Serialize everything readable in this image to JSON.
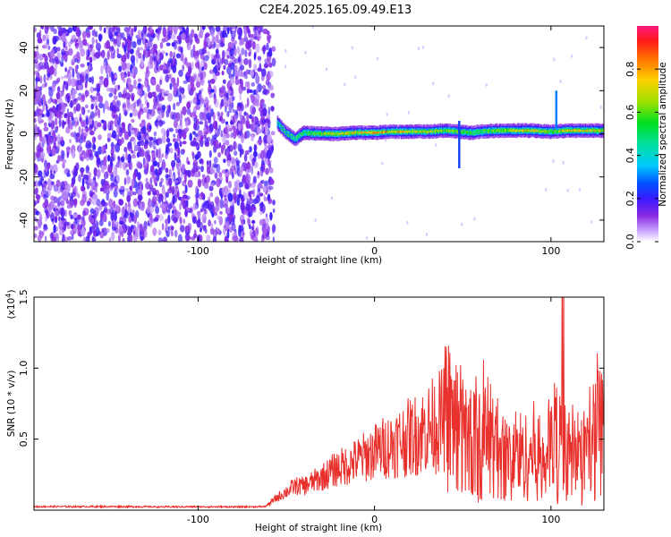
{
  "title": "C2E4.2025.165.09.49.E13",
  "colors": {
    "line": "#e8302c",
    "axis": "#000000",
    "spectro_noise": "#8a2be2",
    "spectro_signal": [
      "#1a1aff",
      "#00d4ff",
      "#00e640",
      "#ffd700",
      "#ff2020"
    ]
  },
  "chart_data": [
    {
      "type": "heatmap",
      "xlabel": "Height of straight line (km)",
      "ylabel": "Frequency (Hz)",
      "xlim": [
        -193,
        130
      ],
      "ylim": [
        -50,
        50
      ],
      "x_ticks": [
        -100,
        0,
        100
      ],
      "x_tick_labels": [
        "-100",
        "0",
        "100"
      ],
      "y_ticks": [
        -40,
        -20,
        0,
        20,
        40
      ],
      "y_tick_labels": [
        "-40",
        "-20",
        "0",
        "20",
        "40"
      ],
      "noise_region_end_km": -57,
      "signal_band": [
        {
          "x": -55,
          "f": 5.0,
          "amp": 0.35
        },
        {
          "x": -50,
          "f": 0.5,
          "amp": 0.4
        },
        {
          "x": -45,
          "f": -2.5,
          "amp": 0.45
        },
        {
          "x": -40,
          "f": 0.5,
          "amp": 0.55
        },
        {
          "x": -30,
          "f": 0.0,
          "amp": 0.7
        },
        {
          "x": -20,
          "f": 0.0,
          "amp": 0.8
        },
        {
          "x": -10,
          "f": 0.5,
          "amp": 0.85
        },
        {
          "x": 0,
          "f": 0.5,
          "amp": 0.9
        },
        {
          "x": 10,
          "f": 1.0,
          "amp": 0.9
        },
        {
          "x": 20,
          "f": 1.0,
          "amp": 0.85
        },
        {
          "x": 30,
          "f": 1.0,
          "amp": 0.8
        },
        {
          "x": 40,
          "f": 1.5,
          "amp": 0.75
        },
        {
          "x": 48,
          "f": 1.0,
          "amp": 0.7
        },
        {
          "x": 55,
          "f": 0.5,
          "amp": 0.6
        },
        {
          "x": 60,
          "f": 1.0,
          "amp": 0.6
        },
        {
          "x": 70,
          "f": 1.5,
          "amp": 0.7
        },
        {
          "x": 80,
          "f": 1.5,
          "amp": 0.8
        },
        {
          "x": 90,
          "f": 1.5,
          "amp": 0.85
        },
        {
          "x": 100,
          "f": 1.0,
          "amp": 0.7
        },
        {
          "x": 110,
          "f": 1.5,
          "amp": 0.85
        },
        {
          "x": 120,
          "f": 1.5,
          "amp": 0.85
        },
        {
          "x": 130,
          "f": 1.5,
          "amp": 0.8
        }
      ],
      "colorbar": {
        "label": "Normalized spectral amplitude",
        "range": [
          0,
          1
        ],
        "ticks": [
          0.0,
          0.2,
          0.4,
          0.6,
          0.8
        ],
        "tick_labels": [
          "0.0",
          "0.2",
          "0.4",
          "0.6",
          "0.8"
        ]
      }
    },
    {
      "type": "line",
      "xlabel": "Height of straight line (km)",
      "ylabel": "SNR (10 * v/v)",
      "y_multiplier_label": "(x10",
      "y_multiplier_exp": "4",
      "xlim": [
        -193,
        130
      ],
      "ylim": [
        0,
        15000
      ],
      "x_ticks": [
        -100,
        0,
        100
      ],
      "x_tick_labels": [
        "-100",
        "0",
        "100"
      ],
      "y_ticks": [
        5000,
        10000,
        15000
      ],
      "y_tick_labels": [
        "0.5",
        "1.0",
        "1.5"
      ],
      "series": [
        {
          "points": [
            [
              -193,
              250
            ],
            [
              -170,
              250
            ],
            [
              -140,
              250
            ],
            [
              -120,
              230
            ],
            [
              -100,
              240
            ],
            [
              -80,
              230
            ],
            [
              -62,
              250
            ],
            [
              -55,
              900
            ],
            [
              -50,
              1300
            ],
            [
              -45,
              1700
            ],
            [
              -40,
              1700
            ],
            [
              -30,
              2300
            ],
            [
              -22,
              2900
            ],
            [
              -15,
              3200
            ],
            [
              -5,
              3800
            ],
            [
              5,
              4400
            ],
            [
              15,
              4900
            ],
            [
              25,
              5400
            ],
            [
              35,
              6100
            ],
            [
              42,
              6600
            ],
            [
              48,
              5800
            ],
            [
              52,
              4900
            ],
            [
              56,
              4800
            ],
            [
              60,
              4500
            ],
            [
              65,
              5300
            ],
            [
              70,
              4300
            ],
            [
              75,
              3500
            ],
            [
              80,
              4100
            ],
            [
              85,
              3700
            ],
            [
              90,
              4200
            ],
            [
              95,
              3600
            ],
            [
              100,
              4500
            ],
            [
              105,
              5600
            ],
            [
              108,
              3400
            ],
            [
              112,
              4200
            ],
            [
              118,
              3500
            ],
            [
              122,
              4600
            ],
            [
              126,
              5700
            ],
            [
              130,
              5200
            ]
          ]
        }
      ]
    }
  ]
}
